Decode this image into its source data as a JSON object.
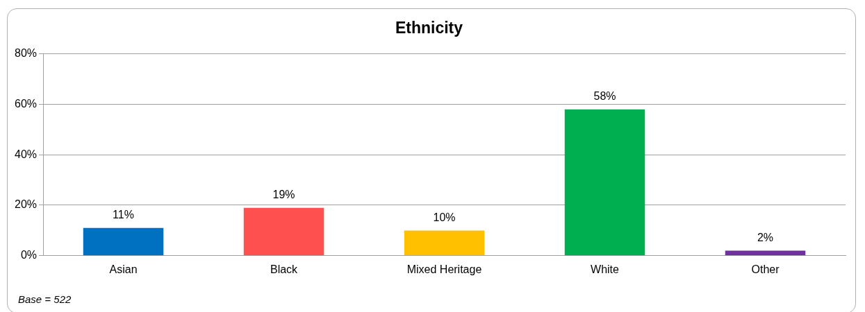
{
  "chart_data": {
    "type": "bar",
    "title": "Ethnicity",
    "categories": [
      "Asian",
      "Black",
      "Mixed Heritage",
      "White",
      "Other"
    ],
    "values": [
      11,
      19,
      10,
      58,
      2
    ],
    "value_labels": [
      "11%",
      "19%",
      "10%",
      "58%",
      "2%"
    ],
    "colors": [
      "#0070c0",
      "#ff5050",
      "#ffc000",
      "#00b050",
      "#7030a0"
    ],
    "ylim": [
      0,
      80
    ],
    "yticks": [
      {
        "value": 0,
        "label": "0%"
      },
      {
        "value": 20,
        "label": "20%"
      },
      {
        "value": 40,
        "label": "40%"
      },
      {
        "value": 60,
        "label": "60%"
      },
      {
        "value": 80,
        "label": "80%"
      }
    ],
    "grid": "y",
    "legend": false,
    "annotations": [
      "Base = 522"
    ]
  }
}
